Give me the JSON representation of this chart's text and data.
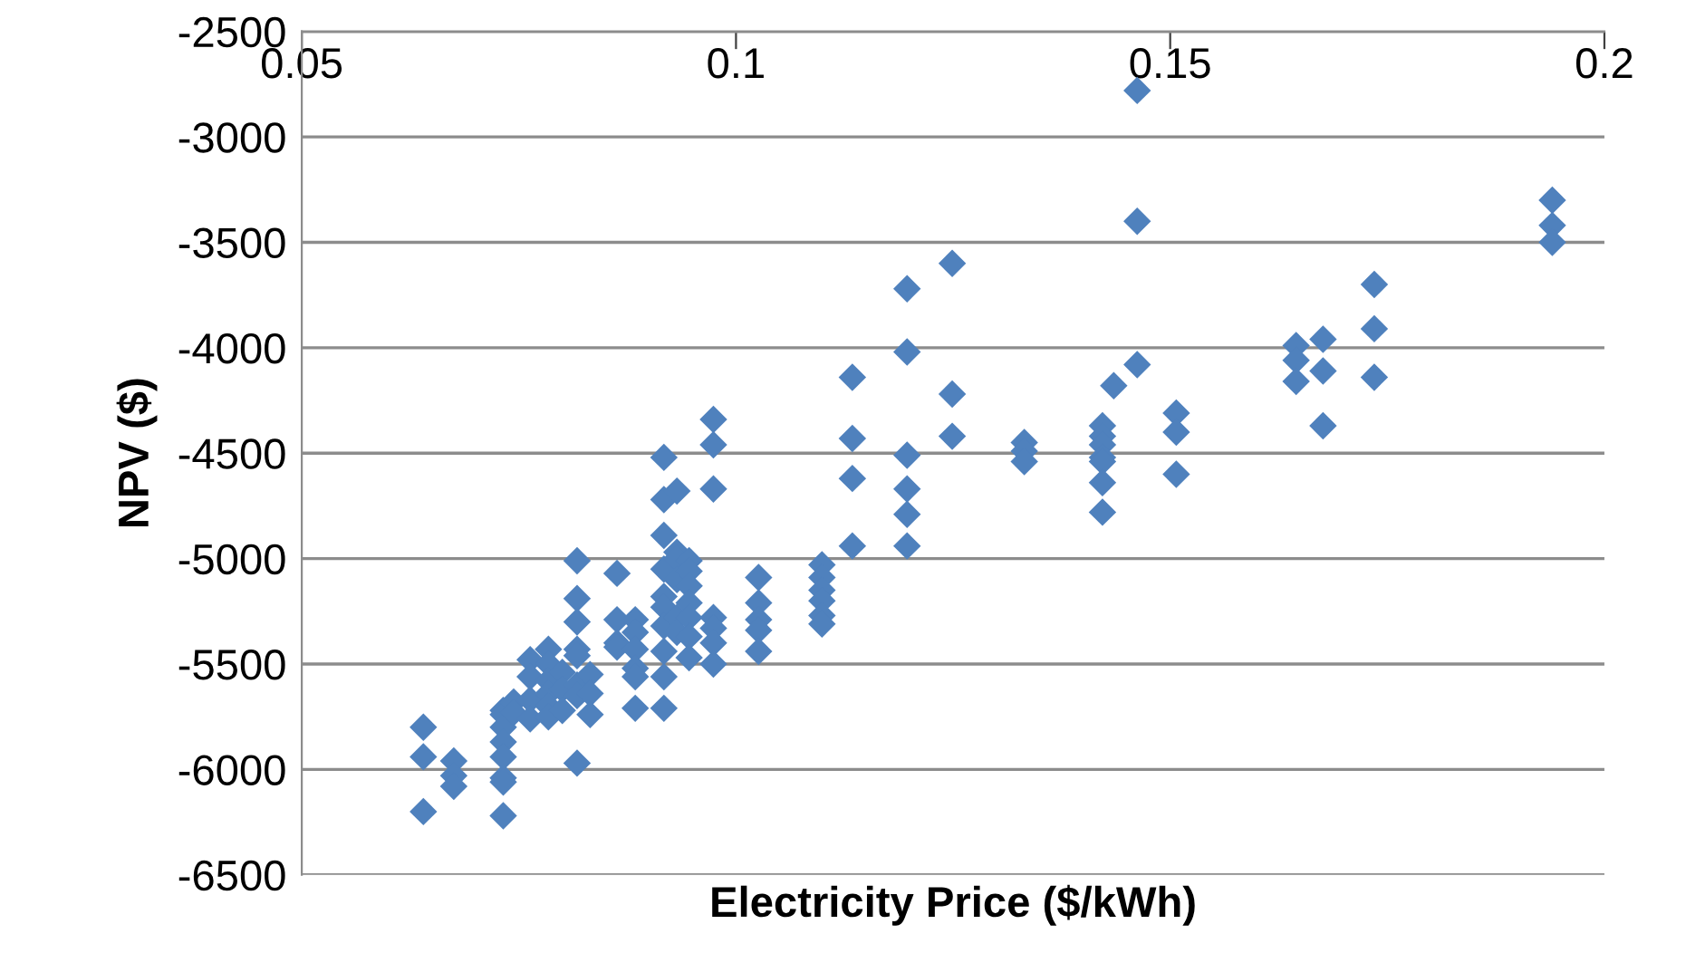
{
  "chart_data": {
    "type": "scatter",
    "xlabel": "Electricity Price ($/kWh)",
    "ylabel": "NPV ($)",
    "xlim": [
      0.05,
      0.2
    ],
    "xticks": [
      0.05,
      0.1,
      0.15,
      0.2
    ],
    "ylim": [
      -6500,
      -2500
    ],
    "yticks": [
      -6500,
      -6000,
      -5500,
      -5000,
      -4500,
      -4000,
      -3500,
      -3000,
      -2500
    ],
    "grid": "y",
    "marker": "diamond",
    "legend": false,
    "series": [
      {
        "color": "#4f81bd",
        "x": [
          0.064,
          0.064,
          0.064,
          0.0675,
          0.0675,
          0.0675,
          0.0732,
          0.0732,
          0.0732,
          0.0732,
          0.0732,
          0.0732,
          0.0732,
          0.0732,
          0.0744,
          0.0744,
          0.0763,
          0.0763,
          0.0763,
          0.0763,
          0.0784,
          0.0784,
          0.0784,
          0.0784,
          0.0784,
          0.0784,
          0.08,
          0.08,
          0.08,
          0.0817,
          0.0817,
          0.0817,
          0.0817,
          0.0817,
          0.0817,
          0.0817,
          0.0817,
          0.0832,
          0.0832,
          0.0832,
          0.0863,
          0.0863,
          0.0863,
          0.0863,
          0.0884,
          0.0884,
          0.0884,
          0.0884,
          0.0884,
          0.0884,
          0.0917,
          0.0917,
          0.0917,
          0.0917,
          0.0917,
          0.0917,
          0.0917,
          0.0917,
          0.0917,
          0.0917,
          0.0932,
          0.0932,
          0.0932,
          0.0932,
          0.0932,
          0.0932,
          0.0946,
          0.0946,
          0.0946,
          0.0946,
          0.0946,
          0.0946,
          0.0946,
          0.0974,
          0.0974,
          0.0974,
          0.0974,
          0.0974,
          0.0974,
          0.0974,
          0.1026,
          0.1026,
          0.1026,
          0.1026,
          0.1026,
          0.1099,
          0.1099,
          0.1099,
          0.1099,
          0.1099,
          0.1099,
          0.1134,
          0.1134,
          0.1134,
          0.1134,
          0.1197,
          0.1197,
          0.1197,
          0.1197,
          0.1197,
          0.1197,
          0.1249,
          0.1249,
          0.1249,
          0.1332,
          0.1332,
          0.1332,
          0.1422,
          0.1422,
          0.1422,
          0.1422,
          0.1422,
          0.1422,
          0.1422,
          0.1435,
          0.1462,
          0.1462,
          0.1462,
          0.1507,
          0.1507,
          0.1507,
          0.1645,
          0.1645,
          0.1645,
          0.1676,
          0.1676,
          0.1676,
          0.1735,
          0.1735,
          0.1735,
          0.194,
          0.194,
          0.194
        ],
        "values": [
          -5800,
          -5940,
          -6200,
          -5960,
          -6030,
          -6080,
          -5720,
          -5740,
          -5800,
          -5870,
          -5940,
          -6040,
          -6060,
          -6220,
          -5680,
          -5730,
          -5480,
          -5560,
          -5670,
          -5760,
          -5430,
          -5500,
          -5580,
          -5640,
          -5700,
          -5750,
          -5540,
          -5620,
          -5720,
          -5010,
          -5190,
          -5300,
          -5430,
          -5460,
          -5600,
          -5650,
          -5970,
          -5550,
          -5640,
          -5740,
          -5070,
          -5290,
          -5400,
          -5420,
          -5290,
          -5350,
          -5430,
          -5520,
          -5560,
          -5710,
          -4520,
          -4720,
          -4890,
          -5050,
          -5180,
          -5230,
          -5320,
          -5440,
          -5560,
          -5710,
          -4680,
          -4970,
          -5000,
          -5100,
          -5280,
          -5350,
          -5010,
          -5060,
          -5130,
          -5210,
          -5280,
          -5370,
          -5470,
          -4340,
          -4460,
          -4670,
          -5280,
          -5330,
          -5400,
          -5500,
          -5090,
          -5210,
          -5290,
          -5340,
          -5440,
          -5030,
          -5090,
          -5150,
          -5200,
          -5270,
          -5310,
          -4140,
          -4430,
          -4620,
          -4940,
          -3720,
          -4020,
          -4510,
          -4670,
          -4790,
          -4940,
          -3600,
          -4220,
          -4420,
          -4450,
          -4490,
          -4540,
          -4370,
          -4420,
          -4460,
          -4520,
          -4540,
          -4640,
          -4780,
          -4180,
          -2780,
          -3400,
          -4080,
          -4310,
          -4400,
          -4600,
          -3990,
          -4060,
          -4160,
          -3960,
          -4110,
          -4370,
          -3700,
          -3910,
          -4140,
          -3300,
          -3420,
          -3500
        ]
      }
    ]
  }
}
